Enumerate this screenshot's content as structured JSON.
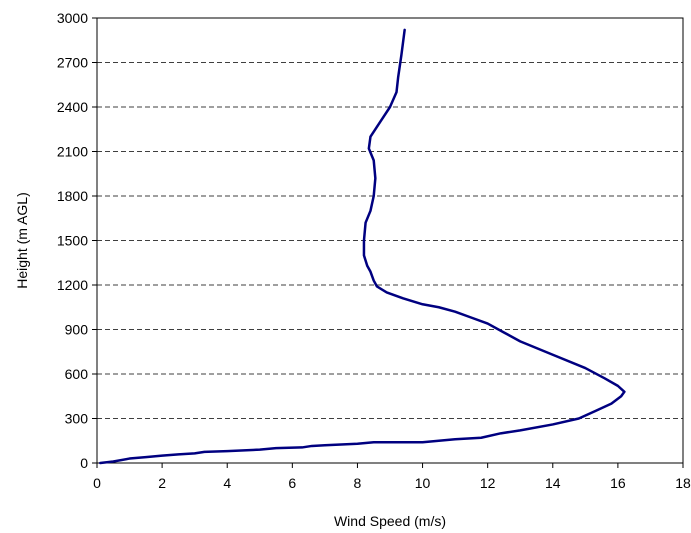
{
  "chart_data": {
    "type": "line",
    "title": "",
    "xlabel": "Wind Speed (m/s)",
    "ylabel": "Height (m AGL)",
    "xlim": [
      0,
      18
    ],
    "ylim": [
      0,
      3000
    ],
    "xticks": [
      0,
      2,
      4,
      6,
      8,
      10,
      12,
      14,
      16,
      18
    ],
    "yticks": [
      0,
      300,
      600,
      900,
      1200,
      1500,
      1800,
      2100,
      2400,
      2700,
      3000
    ],
    "x_tick_labels": [
      "0",
      "2",
      "4",
      "6",
      "8",
      "10",
      "12",
      "14",
      "16",
      "18"
    ],
    "y_tick_labels": [
      "0",
      "300",
      "600",
      "900",
      "1200",
      "1500",
      "1800",
      "2100",
      "2400",
      "2700",
      "3000"
    ],
    "grid": "horizontal dashed",
    "line_color": "#000080",
    "series": [
      {
        "x": [
          0.1,
          0.5,
          1.0,
          1.5,
          2.0,
          2.5,
          3.0,
          3.3,
          4.0,
          5.0,
          5.5,
          6.3,
          6.6,
          7.0,
          7.5,
          8.0,
          8.5,
          9.0,
          10.0,
          10.5,
          11.0,
          11.8,
          12.4,
          13.0,
          14.0,
          14.8,
          15.3,
          15.8,
          16.1,
          16.2,
          16.0,
          15.6,
          15.0,
          14.0,
          13.0,
          12.5,
          12.0,
          11.5,
          11.0,
          10.5,
          10.0,
          9.4,
          8.9,
          8.6,
          8.5,
          8.4,
          8.3,
          8.2,
          8.2,
          8.25,
          8.4,
          8.5,
          8.55,
          8.5,
          8.35,
          8.4,
          8.7,
          9.0,
          9.2,
          9.25,
          9.35,
          9.45
        ],
        "y": [
          0,
          10,
          30,
          40,
          50,
          58,
          65,
          75,
          80,
          90,
          100,
          105,
          115,
          120,
          125,
          130,
          140,
          140,
          140,
          150,
          160,
          170,
          200,
          220,
          260,
          300,
          350,
          400,
          450,
          480,
          520,
          570,
          640,
          730,
          820,
          880,
          940,
          980,
          1020,
          1050,
          1070,
          1110,
          1150,
          1190,
          1230,
          1290,
          1330,
          1400,
          1500,
          1620,
          1700,
          1800,
          1920,
          2040,
          2120,
          2200,
          2300,
          2400,
          2500,
          2600,
          2750,
          2920
        ]
      }
    ]
  }
}
